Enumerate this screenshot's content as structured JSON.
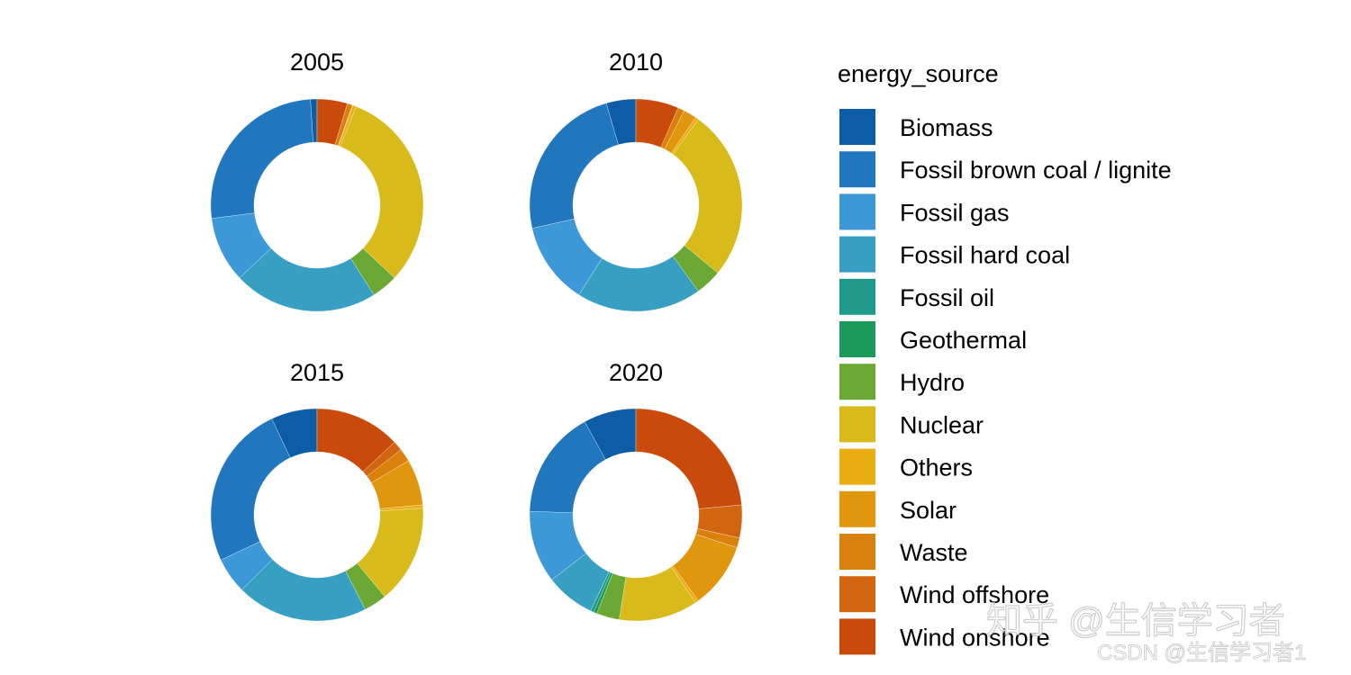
{
  "chart_data": {
    "type": "pie",
    "subtype": "donut",
    "legend_title": "energy_source",
    "legend_position": "right",
    "categories": [
      "Biomass",
      "Fossil brown coal / lignite",
      "Fossil gas",
      "Fossil hard coal",
      "Fossil oil",
      "Geothermal",
      "Hydro",
      "Nuclear",
      "Others",
      "Solar",
      "Waste",
      "Wind offshore",
      "Wind onshore"
    ],
    "colors": [
      "#0C5DA5",
      "#2177BE",
      "#3C98D6",
      "#37A0C2",
      "#1F9A8A",
      "#199A5B",
      "#6CA834",
      "#D8BA1B",
      "#EAAE12",
      "#E0970D",
      "#DA800C",
      "#D26510",
      "#C94A0A"
    ],
    "panels": [
      {
        "title": "2005",
        "values": [
          1.0,
          26.0,
          10.0,
          22.0,
          0.0,
          0.0,
          4.0,
          31.0,
          0.5,
          0.1,
          0.8,
          0.0,
          4.6
        ]
      },
      {
        "title": "2010",
        "values": [
          4.5,
          24.0,
          12.5,
          19.0,
          0.0,
          0.0,
          4.0,
          26.0,
          0.5,
          2.0,
          1.0,
          0.0,
          6.5
        ]
      },
      {
        "title": "2015",
        "values": [
          7.0,
          25.0,
          5.5,
          20.0,
          0.0,
          0.0,
          3.5,
          15.0,
          0.5,
          7.0,
          2.0,
          1.5,
          13.0
        ]
      },
      {
        "title": "2020",
        "values": [
          8.0,
          16.5,
          11.0,
          7.5,
          0.5,
          0.5,
          3.5,
          12.0,
          0.5,
          10.0,
          1.5,
          5.0,
          23.5
        ]
      }
    ]
  },
  "watermark": {
    "main": "知乎 @生信学习者",
    "sub": "CSDN @生信学习者1"
  }
}
